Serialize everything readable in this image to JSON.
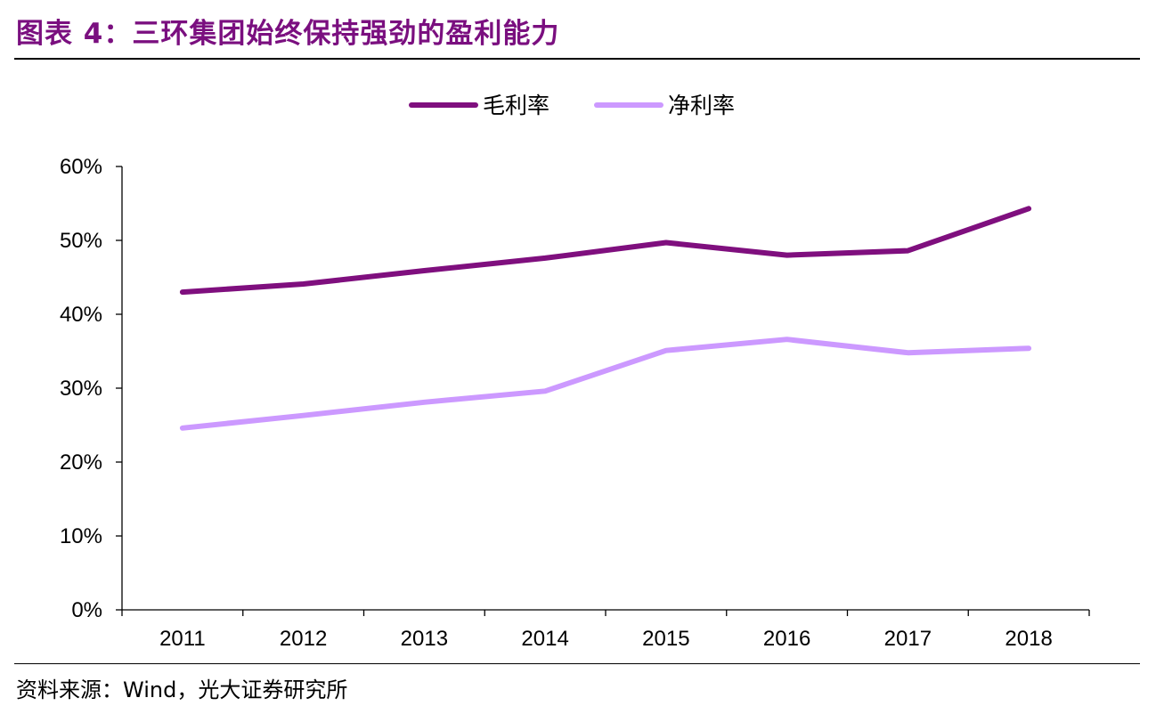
{
  "header": {
    "title": "图表 4：三环集团始终保持强劲的盈利能力"
  },
  "footer": {
    "source": "资料来源：Wind，光大证券研究所"
  },
  "chart_data": {
    "type": "line",
    "title": "",
    "xlabel": "",
    "ylabel": "",
    "categories": [
      "2011",
      "2012",
      "2013",
      "2014",
      "2015",
      "2016",
      "2017",
      "2018"
    ],
    "ylim": [
      0,
      60
    ],
    "yticks": [
      0,
      10,
      20,
      30,
      40,
      50,
      60
    ],
    "ytick_labels": [
      "0%",
      "10%",
      "20%",
      "30%",
      "40%",
      "50%",
      "60%"
    ],
    "legend_position": "top-center",
    "grid": false,
    "series": [
      {
        "name": "毛利率",
        "color": "#7f0f7e",
        "values": [
          43.0,
          44.1,
          45.9,
          47.6,
          49.7,
          48.0,
          48.6,
          54.3
        ]
      },
      {
        "name": "净利率",
        "color": "#cc99ff",
        "values": [
          24.6,
          26.3,
          28.1,
          29.6,
          35.1,
          36.6,
          34.8,
          35.4
        ]
      }
    ]
  }
}
